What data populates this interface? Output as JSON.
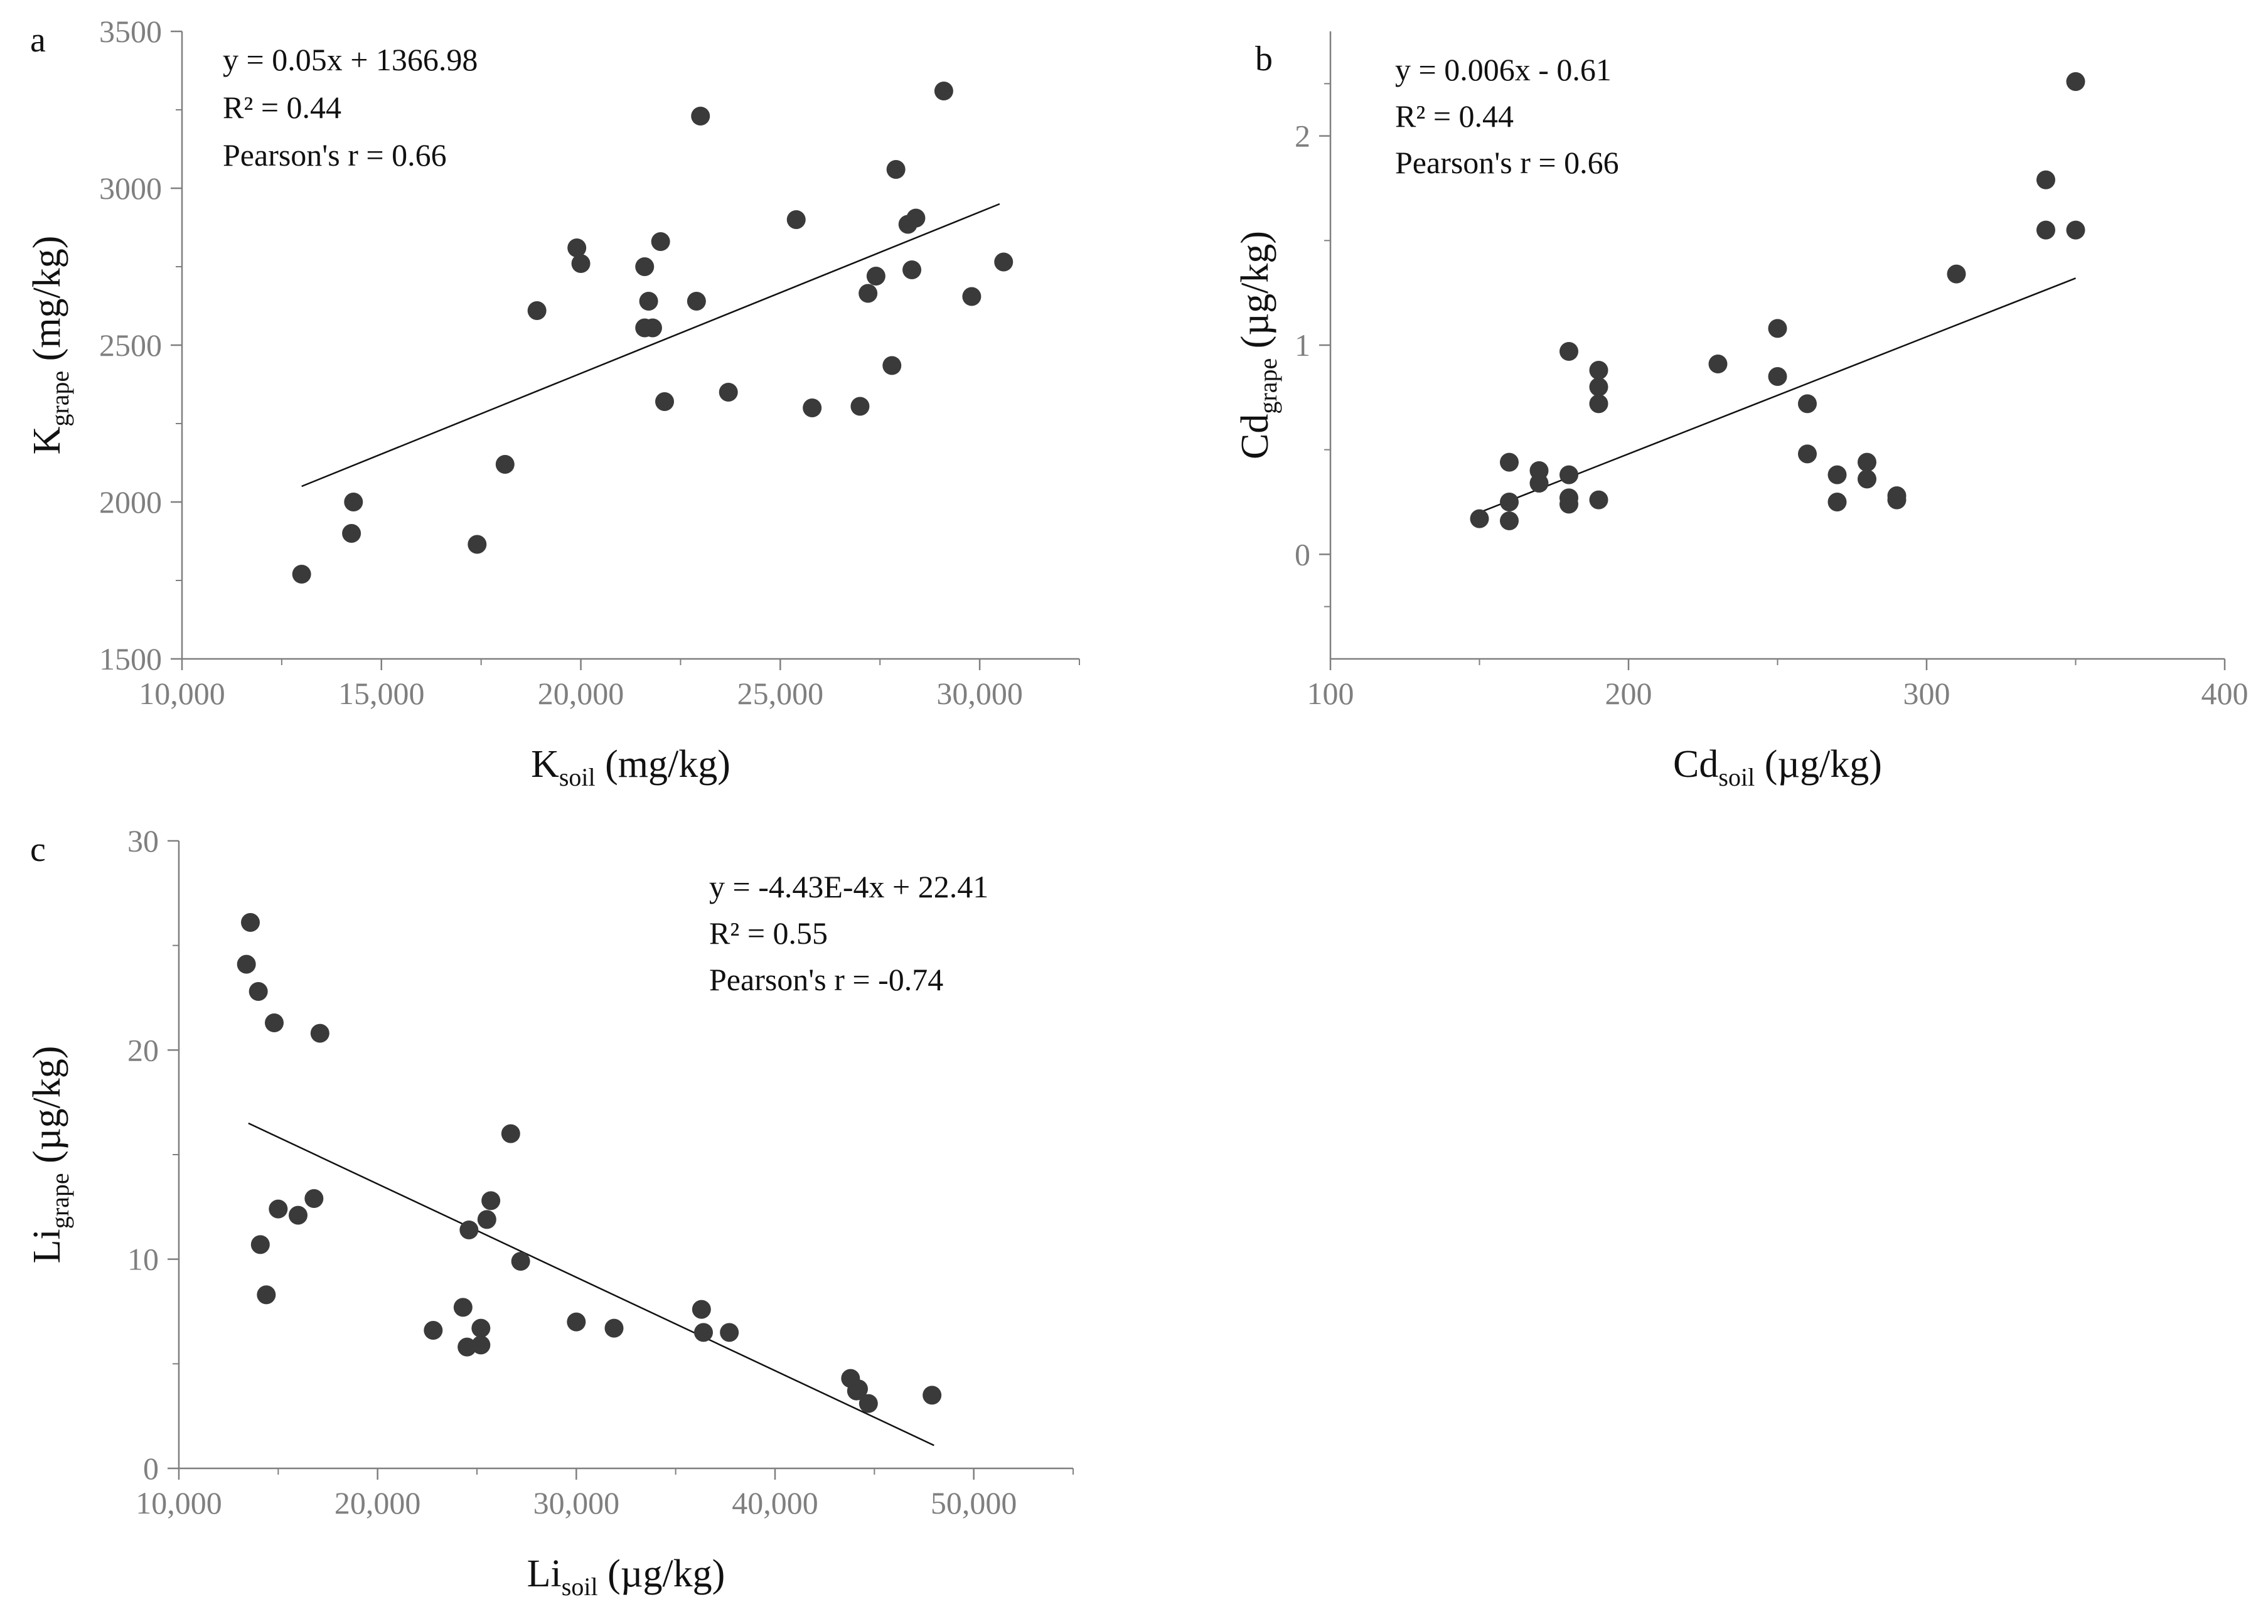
{
  "colors": {
    "point": "#3a3a3a",
    "axis": "#7f7f7f",
    "line": "#111111",
    "text": "#111111"
  },
  "chart_data": [
    {
      "panel": "a",
      "type": "scatter",
      "xlabel": {
        "main": "K",
        "sub": "soil",
        "unit": " (mg/kg)"
      },
      "ylabel": {
        "main": "K",
        "sub": "grape",
        "unit": " (mg/kg)"
      },
      "xlim": [
        10000,
        32500
      ],
      "ylim": [
        1500,
        3500
      ],
      "xticks": [
        10000,
        15000,
        20000,
        25000,
        30000
      ],
      "xtick_labels": [
        "10,000",
        "15,000",
        "20,000",
        "25,000",
        "30,000"
      ],
      "yticks": [
        1500,
        2000,
        2500,
        3000,
        3500
      ],
      "ytick_labels": [
        "1500",
        "2000",
        "2500",
        "3000",
        "3500"
      ],
      "annotations": [
        "y = 0.05x + 1366.98",
        "R² = 0.44",
        "Pearson's r = 0.66"
      ],
      "fit_line": {
        "x": [
          13000,
          30500
        ],
        "y": [
          2050,
          2950
        ]
      },
      "points": [
        [
          13000,
          1770
        ],
        [
          14300,
          2000
        ],
        [
          14250,
          1900
        ],
        [
          17400,
          1865
        ],
        [
          18100,
          2120
        ],
        [
          18900,
          2610
        ],
        [
          19900,
          2810
        ],
        [
          20000,
          2760
        ],
        [
          21600,
          2750
        ],
        [
          21700,
          2640
        ],
        [
          21600,
          2555
        ],
        [
          21800,
          2555
        ],
        [
          22000,
          2830
        ],
        [
          22100,
          2320
        ],
        [
          22900,
          2640
        ],
        [
          23000,
          3230
        ],
        [
          23700,
          2350
        ],
        [
          25400,
          2900
        ],
        [
          25800,
          2300
        ],
        [
          27000,
          2305
        ],
        [
          27200,
          2665
        ],
        [
          27400,
          2720
        ],
        [
          27800,
          2435
        ],
        [
          27900,
          3060
        ],
        [
          28200,
          2885
        ],
        [
          28400,
          2905
        ],
        [
          28300,
          2740
        ],
        [
          29100,
          3310
        ],
        [
          29800,
          2655
        ],
        [
          30600,
          2765
        ]
      ]
    },
    {
      "panel": "b",
      "type": "scatter",
      "xlabel": {
        "main": "Cd",
        "sub": "soil",
        "unit": " (µg/kg)"
      },
      "ylabel": {
        "main": "Cd",
        "sub": "grape",
        "unit": " (µg/kg)"
      },
      "xlim": [
        100,
        400
      ],
      "ylim": [
        -0.5,
        2.5
      ],
      "xticks": [
        100,
        200,
        300,
        400
      ],
      "xtick_labels": [
        "100",
        "200",
        "300",
        "400"
      ],
      "yticks": [
        0,
        1,
        2
      ],
      "ytick_labels": [
        "0",
        "1",
        "2"
      ],
      "annotations": [
        "y = 0.006x - 0.61",
        "R² = 0.44",
        "Pearson's r = 0.66"
      ],
      "fit_line": {
        "x": [
          150,
          350
        ],
        "y": [
          0.2,
          1.32
        ]
      },
      "points": [
        [
          150,
          0.17
        ],
        [
          160,
          0.16
        ],
        [
          160,
          0.25
        ],
        [
          160,
          0.44
        ],
        [
          170,
          0.34
        ],
        [
          170,
          0.4
        ],
        [
          180,
          0.24
        ],
        [
          180,
          0.27
        ],
        [
          180,
          0.38
        ],
        [
          180,
          0.97
        ],
        [
          190,
          0.26
        ],
        [
          190,
          0.72
        ],
        [
          190,
          0.8
        ],
        [
          190,
          0.88
        ],
        [
          230,
          0.91
        ],
        [
          250,
          0.85
        ],
        [
          250,
          1.08
        ],
        [
          260,
          0.48
        ],
        [
          260,
          0.72
        ],
        [
          270,
          0.25
        ],
        [
          270,
          0.38
        ],
        [
          280,
          0.36
        ],
        [
          280,
          0.44
        ],
        [
          290,
          0.26
        ],
        [
          290,
          0.28
        ],
        [
          310,
          1.34
        ],
        [
          340,
          1.55
        ],
        [
          340,
          1.79
        ],
        [
          350,
          1.55
        ],
        [
          350,
          2.26
        ]
      ]
    },
    {
      "panel": "c",
      "type": "scatter",
      "xlabel": {
        "main": "Li",
        "sub": "soil",
        "unit": " (µg/kg)"
      },
      "ylabel": {
        "main": "Li",
        "sub": "grape",
        "unit": " (µg/kg)"
      },
      "xlim": [
        10000,
        55000
      ],
      "ylim": [
        0,
        30
      ],
      "xticks": [
        10000,
        20000,
        30000,
        40000,
        50000
      ],
      "xtick_labels": [
        "10,000",
        "20,000",
        "30,000",
        "40,000",
        "50,000"
      ],
      "yticks": [
        0,
        10,
        20,
        30
      ],
      "ytick_labels": [
        "0",
        "10",
        "20",
        "30"
      ],
      "annotations": [
        "y = -4.43E-4x + 22.41",
        "R² = 0.55",
        "Pearson's r = -0.74"
      ],
      "fit_line": {
        "x": [
          13500,
          48000
        ],
        "y": [
          16.5,
          1.1
        ]
      },
      "points": [
        [
          13400,
          24.1
        ],
        [
          13600,
          26.1
        ],
        [
          14000,
          22.8
        ],
        [
          14100,
          10.7
        ],
        [
          14400,
          8.3
        ],
        [
          14800,
          21.3
        ],
        [
          15000,
          12.4
        ],
        [
          16000,
          12.1
        ],
        [
          16800,
          12.9
        ],
        [
          17100,
          20.8
        ],
        [
          22800,
          6.6
        ],
        [
          24300,
          7.7
        ],
        [
          24500,
          5.8
        ],
        [
          24600,
          11.4
        ],
        [
          25200,
          5.9
        ],
        [
          25200,
          6.7
        ],
        [
          25500,
          11.9
        ],
        [
          25700,
          12.8
        ],
        [
          26700,
          16.0
        ],
        [
          27200,
          9.9
        ],
        [
          30000,
          7.0
        ],
        [
          31900,
          6.7
        ],
        [
          36300,
          7.6
        ],
        [
          36400,
          6.5
        ],
        [
          37700,
          6.5
        ],
        [
          43800,
          4.3
        ],
        [
          44100,
          3.7
        ],
        [
          44200,
          3.8
        ],
        [
          44700,
          3.1
        ],
        [
          47900,
          3.5
        ]
      ]
    }
  ]
}
